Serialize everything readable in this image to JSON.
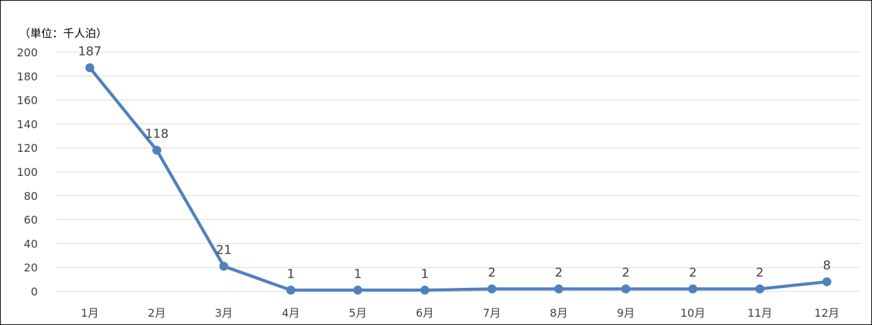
{
  "chart_data": {
    "type": "line",
    "title": "",
    "unit_label": "（単位：千人泊）",
    "xlabel": "",
    "ylabel": "",
    "categories": [
      "1月",
      "2月",
      "3月",
      "4月",
      "5月",
      "6月",
      "7月",
      "8月",
      "9月",
      "10月",
      "11月",
      "12月"
    ],
    "series": [
      {
        "values": [
          187,
          118,
          21,
          1,
          1,
          1,
          2,
          2,
          2,
          2,
          2,
          8
        ],
        "data_labels": [
          "187",
          "118",
          "21",
          "1",
          "1",
          "1",
          "2",
          "2",
          "2",
          "2",
          "2",
          "8"
        ]
      }
    ],
    "ylim": [
      0,
      200
    ],
    "yticks": [
      0,
      20,
      40,
      60,
      80,
      100,
      120,
      140,
      160,
      180,
      200
    ],
    "grid": "horizontal",
    "legend": "none",
    "colors": {
      "line": "#4F81BD",
      "grid": "#D9D9D9",
      "text": "#404040"
    }
  }
}
